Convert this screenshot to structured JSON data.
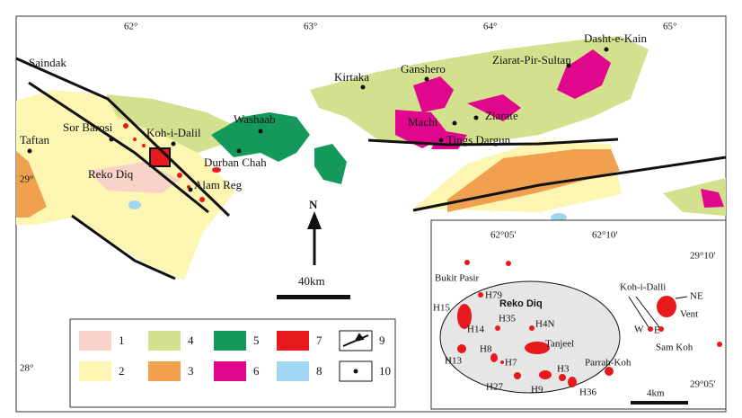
{
  "map": {
    "longitude_labels": [
      "62°",
      "63°",
      "64°",
      "65°"
    ],
    "latitude_labels": [
      "29°",
      "28°"
    ],
    "places": [
      "Saindak",
      "Taftan",
      "Sor Barosi",
      "Koh-i-Dalil",
      "Reko Diq",
      "Alam Reg",
      "Durban Chah",
      "Washaab",
      "Kirtaka",
      "Ganshero",
      "Ziarat-Pir-Sultan",
      "Dasht-e-Kain",
      "Machi",
      "Ziarate",
      "Tings Dargun"
    ],
    "north": "N",
    "scale": "40km"
  },
  "legend": {
    "items": [
      {
        "label": "1",
        "color": "#f9d3c9"
      },
      {
        "label": "2",
        "color": "#fdf5b2"
      },
      {
        "label": "3",
        "color": "#f0a04e"
      },
      {
        "label": "4",
        "color": "#d3e08e"
      },
      {
        "label": "5",
        "color": "#15995a"
      },
      {
        "label": "6",
        "color": "#e0078c"
      },
      {
        "label": "7",
        "color": "#e8191c"
      },
      {
        "label": "8",
        "color": "#9fd6f2"
      },
      {
        "label": "9"
      },
      {
        "label": "10"
      }
    ]
  },
  "inset": {
    "longitude_labels": [
      "62°05'",
      "62°10'"
    ],
    "latitude_labels": [
      "29°10'",
      "29°05'"
    ],
    "district": "Reko Diq",
    "deposits": [
      "Bukit Pasir",
      "H79",
      "H15",
      "H14",
      "H35",
      "H4N",
      "Tanjeel",
      "H8",
      "H7",
      "H13",
      "H27",
      "H9",
      "H3",
      "H36",
      "Parrah-Koh",
      "Koh-i-Dalli",
      "NE",
      "Vent",
      "W",
      "E",
      "Sam Koh"
    ],
    "scale": "4km"
  }
}
